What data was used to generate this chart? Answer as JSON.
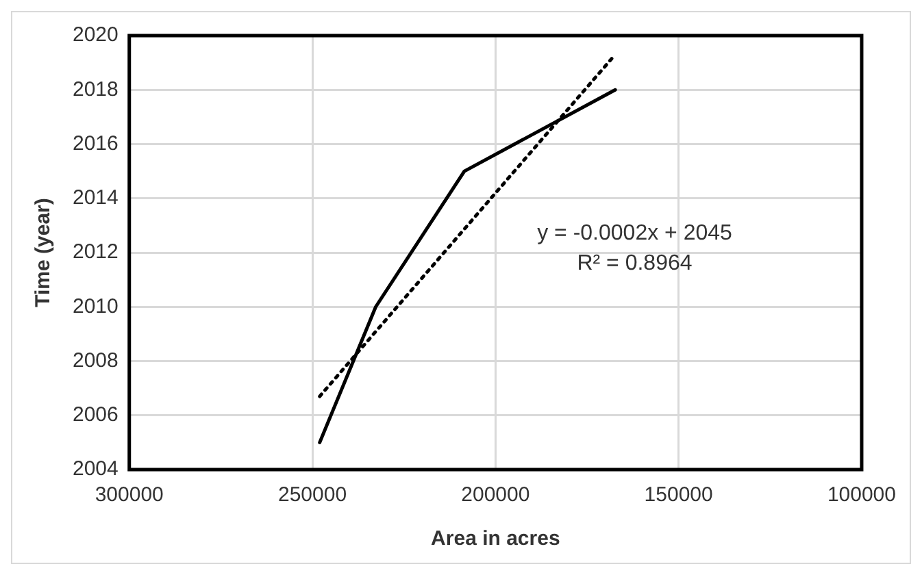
{
  "chart_data": {
    "type": "line",
    "xlabel": "Area in acres",
    "ylabel": "Time (year)",
    "series": [
      {
        "color": "#000000",
        "x": [
          248000,
          232700,
          208500,
          167300
        ],
        "values": [
          2005,
          2010,
          2015,
          2018
        ],
        "line_style": "solid"
      },
      {
        "color": "#000000",
        "x": [
          248000,
          167300
        ],
        "values": [
          2006.7,
          2019.3
        ],
        "line_style": "dotted"
      }
    ],
    "xlim": [
      300000,
      100000
    ],
    "xticks": [
      300000,
      250000,
      200000,
      150000,
      100000
    ],
    "ylim": [
      2004,
      2020
    ],
    "yticks": [
      2004,
      2006,
      2008,
      2010,
      2012,
      2014,
      2016,
      2018,
      2020
    ],
    "grid": true,
    "legend": false,
    "marker": "none",
    "annotations": [
      "y = -0.0002x + 2045",
      "R² = 0.8964"
    ]
  }
}
